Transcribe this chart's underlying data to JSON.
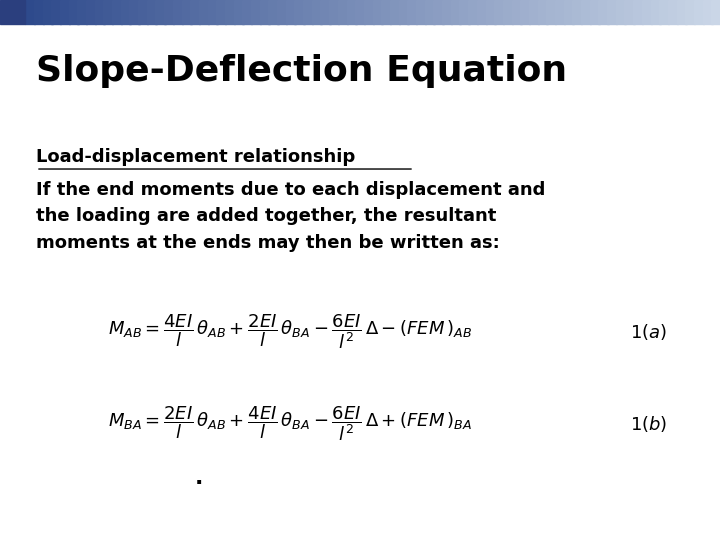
{
  "title": "Slope-Deflection Equation",
  "subtitle": "Load-displacement relationship",
  "body_text": "If the end moments due to each displacement and\nthe loading are added together, the resultant\nmoments at the ends may then be written as:",
  "dot": ".",
  "bg_color": "#ffffff",
  "title_color": "#000000",
  "text_color": "#000000",
  "title_fontsize": 26,
  "subtitle_fontsize": 13,
  "body_fontsize": 13,
  "eq_fontsize": 13,
  "label_fontsize": 13
}
